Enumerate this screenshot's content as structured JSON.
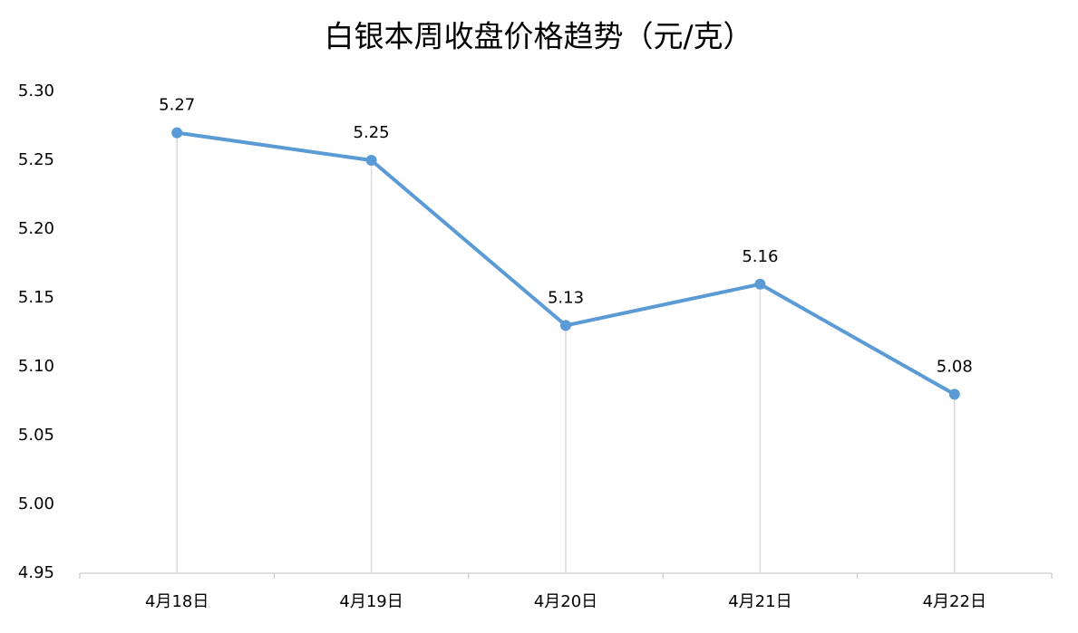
{
  "chart_data": {
    "type": "line",
    "title": "白银本周收盘价格趋势（元/克）",
    "categories": [
      "4月18日",
      "4月19日",
      "4月20日",
      "4月21日",
      "4月22日"
    ],
    "values": [
      5.27,
      5.25,
      5.13,
      5.16,
      5.08
    ],
    "color": "#5b9bd5",
    "ylim": [
      4.95,
      5.3
    ],
    "yticks": [
      4.95,
      {
        "value": 5,
        "label": "5.00"
      },
      5.05,
      {
        "value": 5.1,
        "label": "5.10"
      },
      5.15,
      {
        "value": 5.2,
        "label": "5.20"
      },
      5.25,
      {
        "value": 5.3,
        "label": "5.30"
      }
    ],
    "drop_lines": true
  }
}
